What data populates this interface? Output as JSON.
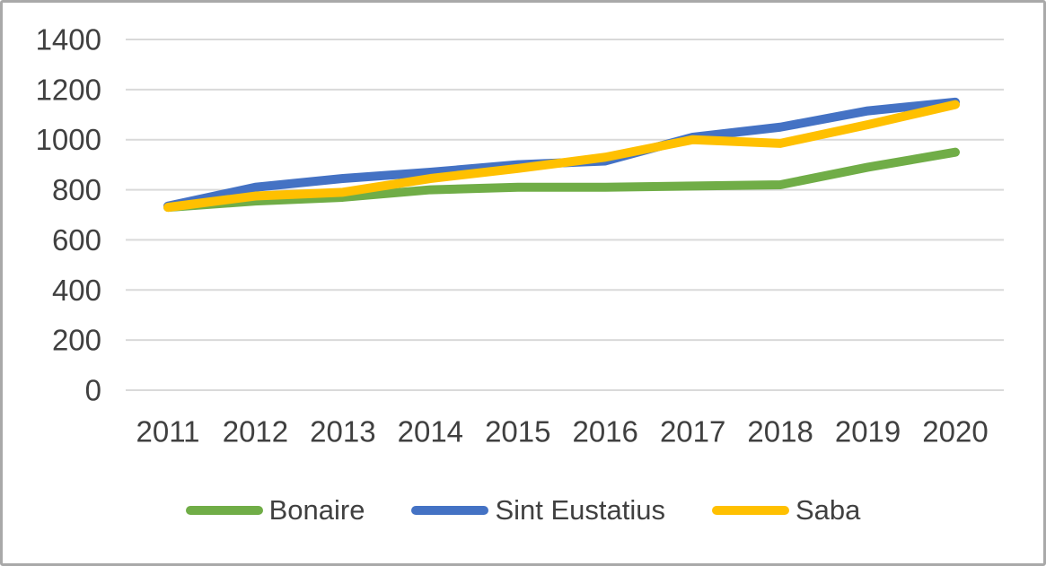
{
  "chart_data": {
    "type": "line",
    "title": "",
    "categories": [
      "2011",
      "2012",
      "2013",
      "2014",
      "2015",
      "2016",
      "2017",
      "2018",
      "2019",
      "2020"
    ],
    "series": [
      {
        "name": "Bonaire",
        "color": "#70AD47",
        "values": [
          730,
          755,
          770,
          800,
          810,
          810,
          815,
          820,
          890,
          950
        ]
      },
      {
        "name": "Sint Eustatius",
        "color": "#4472C4",
        "values": [
          735,
          810,
          845,
          870,
          900,
          915,
          1010,
          1050,
          1115,
          1150
        ]
      },
      {
        "name": "Saba",
        "color": "#FFC000",
        "values": [
          730,
          775,
          790,
          845,
          885,
          930,
          1000,
          985,
          1060,
          1140
        ]
      }
    ],
    "ylim": [
      0,
      1400
    ],
    "yticks": [
      0,
      200,
      400,
      600,
      800,
      1000,
      1200,
      1400
    ],
    "grid": "horizontal",
    "legend_position": "bottom"
  },
  "style_colors": {
    "gridline": "#D9D9D9",
    "axis_text": "#404040",
    "frame_border": "#A9A9A9",
    "background": "#FFFFFF"
  }
}
